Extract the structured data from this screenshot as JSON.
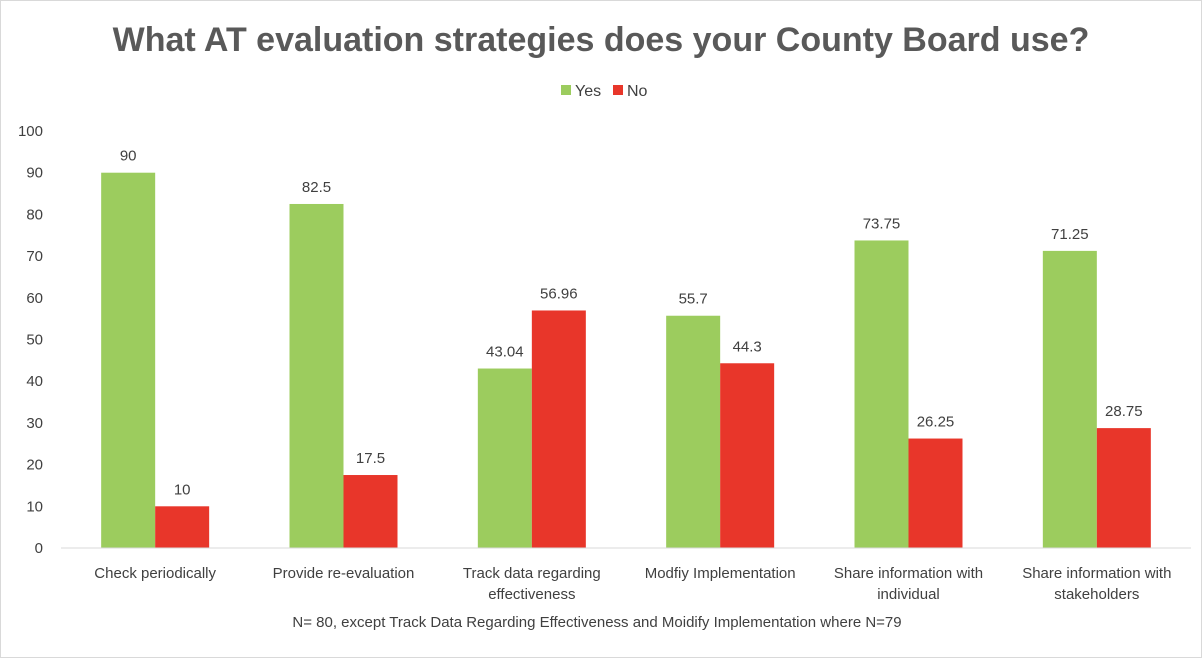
{
  "chart_data": {
    "type": "bar",
    "title": "What AT evaluation strategies does your County Board use?",
    "categories": [
      [
        "Check periodically"
      ],
      [
        "Provide re-evaluation"
      ],
      [
        "Track data regarding",
        "effectiveness"
      ],
      [
        "Modfiy Implementation"
      ],
      [
        "Share information with",
        "individual"
      ],
      [
        "Share information with",
        "stakeholders"
      ]
    ],
    "series": [
      {
        "name": "Yes",
        "color": "#9ccc5e",
        "values": [
          90,
          82.5,
          43.04,
          55.7,
          73.75,
          71.25
        ],
        "labels": [
          "90",
          "82.5",
          "43.04",
          "55.7",
          "73.75",
          "71.25"
        ]
      },
      {
        "name": "No",
        "color": "#e8362a",
        "values": [
          10,
          17.5,
          56.96,
          44.3,
          26.25,
          28.75
        ],
        "labels": [
          "10",
          "17.5",
          "56.96",
          "44.3",
          "26.25",
          "28.75"
        ]
      }
    ],
    "ylim": [
      0,
      100
    ],
    "yticks": [
      "0",
      "10",
      "20",
      "30",
      "40",
      "50",
      "60",
      "70",
      "80",
      "90",
      "100"
    ],
    "xlabel": "",
    "ylabel": "",
    "grid": false,
    "legend_position": "top-center",
    "note": "N= 80, except Track Data Regarding Effectiveness and Moidify Implementation where N=79"
  }
}
